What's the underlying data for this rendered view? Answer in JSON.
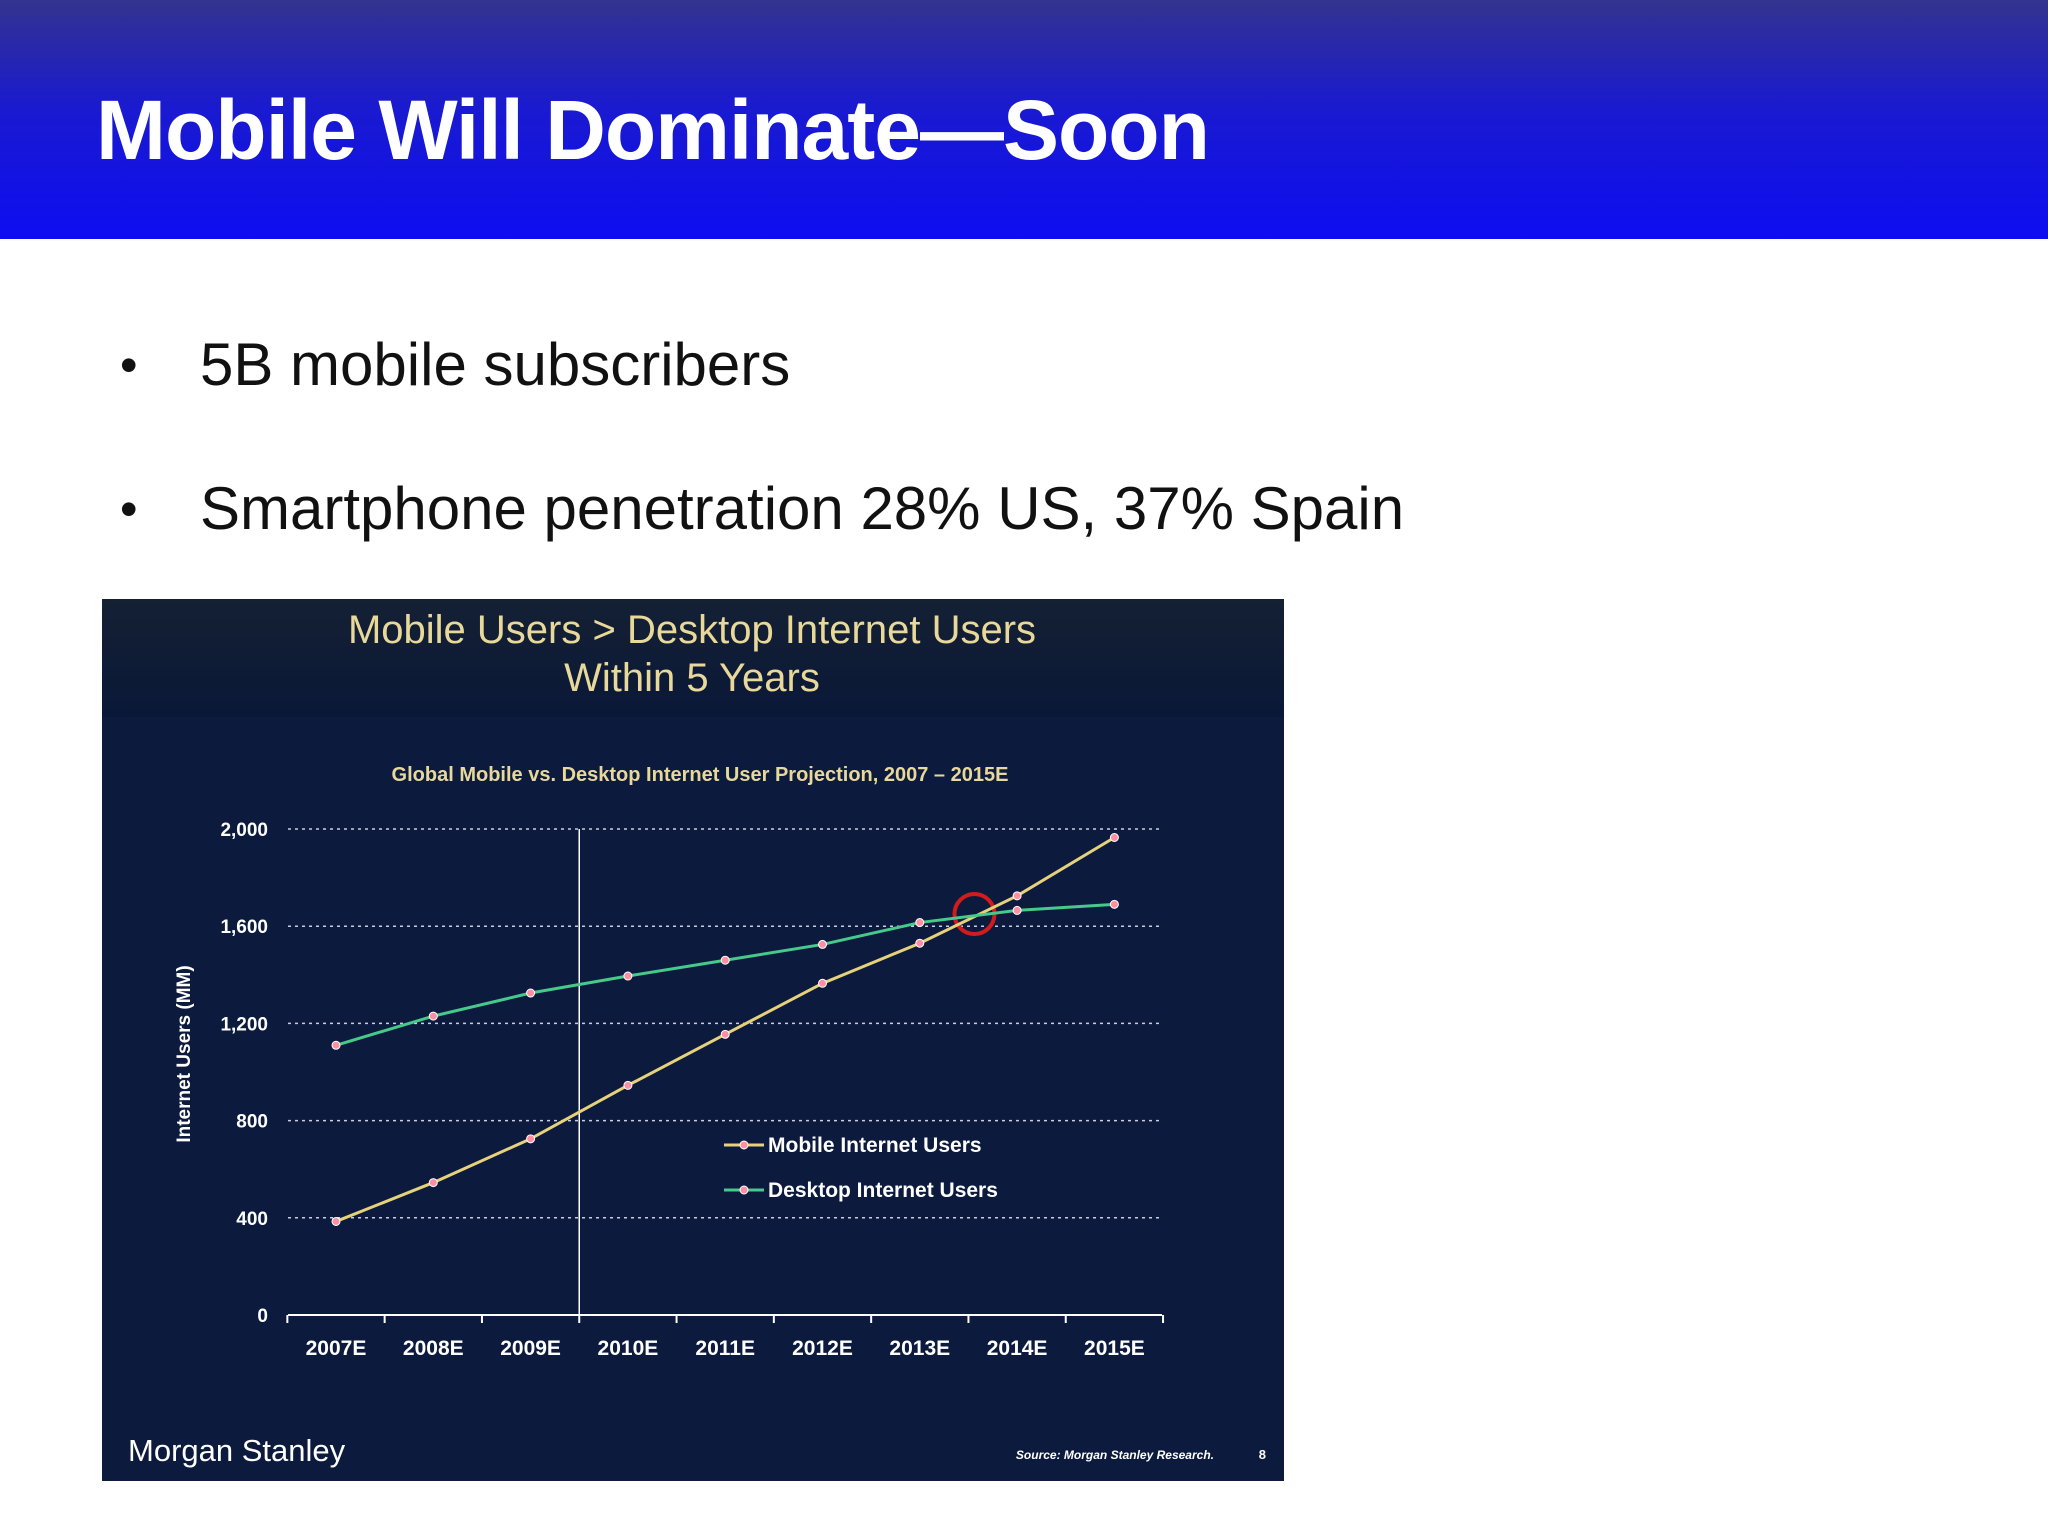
{
  "slide": {
    "title": "Mobile Will Dominate—Soon",
    "bullets": [
      {
        "text": "5B mobile subscribers"
      },
      {
        "text": "Smartphone penetration 28% US, 37% Spain"
      }
    ]
  },
  "chart_panel": {
    "headline_line1": "Mobile Users > Desktop Internet Users",
    "headline_line2": "Within 5 Years",
    "brand": "Morgan Stanley",
    "source": "Source: Morgan Stanley Research.",
    "page_number": "8"
  },
  "colors": {
    "title_bar": "#0d0df2",
    "panel_background": "#0b1a3d",
    "headline": "#e8d89a",
    "mobile_line": "#e6d27a",
    "desktop_line": "#46c98a",
    "marker": "#ff8fa3",
    "highlight_circle": "#d11c1c"
  },
  "chart_data": {
    "type": "line",
    "title": "Global Mobile vs. Desktop Internet User Projection, 2007 – 2015E",
    "xlabel": "",
    "ylabel": "Internet Users (MM)",
    "categories": [
      "2007E",
      "2008E",
      "2009E",
      "2010E",
      "2011E",
      "2012E",
      "2013E",
      "2014E",
      "2015E"
    ],
    "ylim": [
      0,
      2000
    ],
    "yticks": [
      0,
      400,
      800,
      1200,
      1600,
      2000
    ],
    "ytick_labels": [
      "0",
      "400",
      "800",
      "1,200",
      "1,600",
      "2,000"
    ],
    "grid": "horizontal dotted",
    "legend_position": "center-right",
    "series": [
      {
        "name": "Mobile Internet Users",
        "values": [
          385,
          545,
          725,
          945,
          1155,
          1365,
          1530,
          1725,
          1965
        ],
        "color": "#e6d27a"
      },
      {
        "name": "Desktop Internet Users",
        "values": [
          1110,
          1230,
          1325,
          1395,
          1460,
          1525,
          1615,
          1665,
          1690
        ],
        "color": "#46c98a"
      }
    ],
    "annotations": [
      {
        "type": "vertical-line",
        "at": "2010E"
      },
      {
        "type": "circle",
        "label": "crossover",
        "x": "2014E",
        "y": 1650
      }
    ]
  }
}
